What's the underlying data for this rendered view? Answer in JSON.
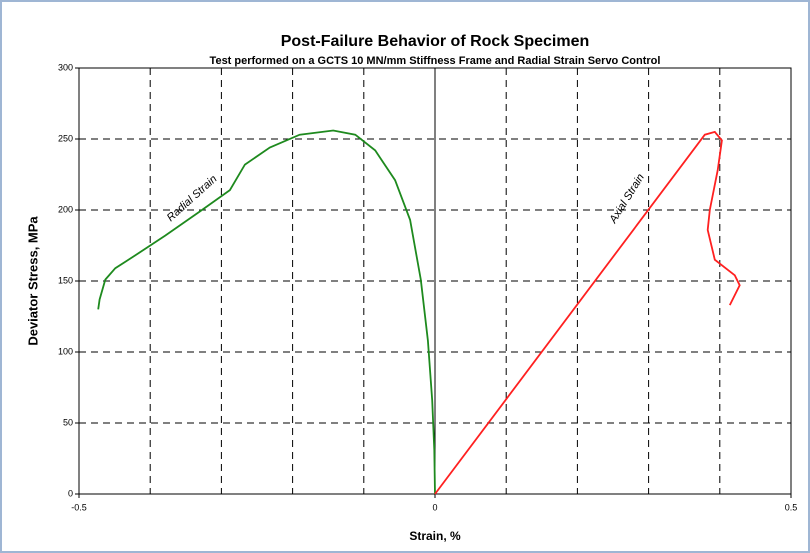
{
  "chart_data": {
    "type": "line",
    "title": "Post-Failure Behavior of Rock Specimen",
    "subtitle": "Test performed on a GCTS 10 MN/mm Stiffness Frame and Radial Strain Servo Control",
    "xlabel": "Strain, %",
    "ylabel": "Deviator Stress, MPa",
    "xlim": [
      -0.5,
      0.5
    ],
    "xticks": [
      -0.5,
      0,
      0.5
    ],
    "xgrid": [
      -0.4,
      -0.3,
      -0.2,
      -0.1,
      0.1,
      0.2,
      0.3,
      0.4
    ],
    "ylim": [
      0,
      300
    ],
    "yticks": [
      0,
      50,
      100,
      150,
      200,
      250,
      300
    ],
    "grid": true,
    "series": [
      {
        "name": "Radial Strain",
        "color": "#1e8a1e",
        "x": [
          0,
          -0.001,
          -0.004,
          -0.01,
          -0.02,
          -0.035,
          -0.056,
          -0.084,
          -0.112,
          -0.143,
          -0.19,
          -0.232,
          -0.267,
          -0.288,
          -0.33,
          -0.379,
          -0.421,
          -0.449,
          -0.463,
          -0.471,
          -0.473
        ],
        "values": [
          0,
          31,
          66,
          108,
          151,
          193,
          221,
          242,
          253,
          256,
          253,
          244,
          232,
          214,
          199,
          182,
          168,
          159,
          151,
          137,
          130
        ]
      },
      {
        "name": "Axial Strain",
        "color": "#ff2020",
        "x": [
          0,
          0.379,
          0.393,
          0.403,
          0.397,
          0.386,
          0.383,
          0.393,
          0.421,
          0.428,
          0.414
        ],
        "values": [
          0,
          253,
          255,
          249,
          228,
          200,
          186,
          165,
          154,
          147,
          133
        ]
      }
    ],
    "annotations": [
      {
        "text": "Radial Strain",
        "x": -0.341,
        "y": 208
      },
      {
        "text": "Axial Strain",
        "x": 0.27,
        "y": 208
      }
    ]
  }
}
